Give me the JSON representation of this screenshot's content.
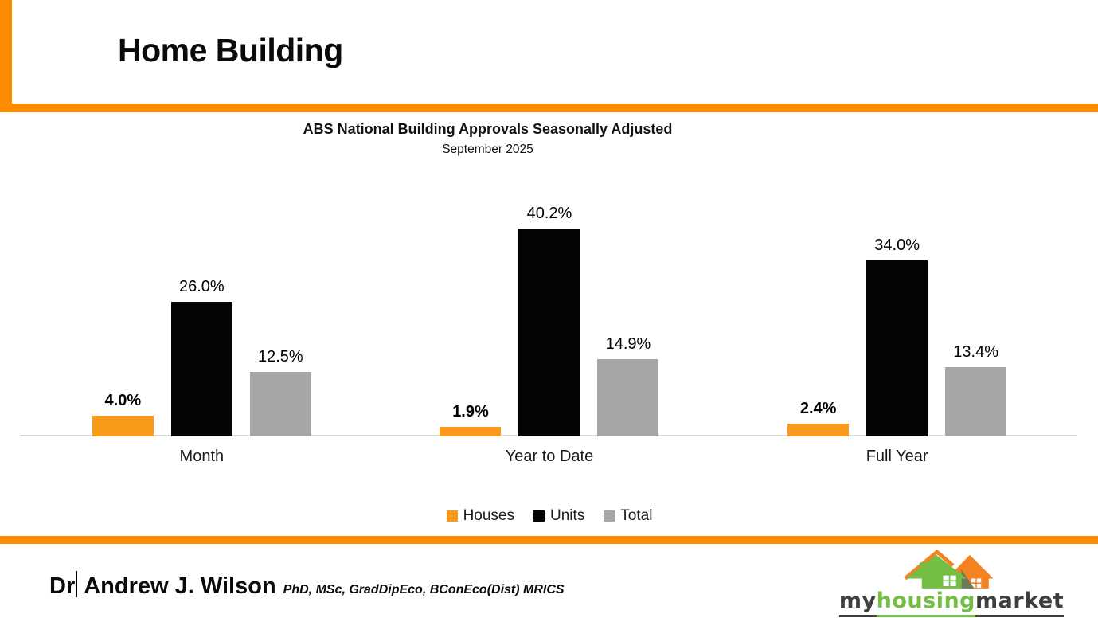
{
  "slide": {
    "title": "Home Building"
  },
  "chart": {
    "title": "ABS National Building Approvals Seasonally Adjusted",
    "subtitle": "September 2025"
  },
  "chart_data": {
    "type": "bar",
    "categories": [
      "Month",
      "Year to Date",
      "Full Year"
    ],
    "series": [
      {
        "name": "Houses",
        "color": "#FA9A1B",
        "values": [
          4.0,
          1.9,
          2.4
        ],
        "labels": [
          "4.0%",
          "1.9%",
          "2.4%"
        ],
        "label_bold": true
      },
      {
        "name": "Units",
        "color": "#050505",
        "values": [
          26.0,
          40.2,
          34.0
        ],
        "labels": [
          "26.0%",
          "40.2%",
          "34.0%"
        ],
        "label_bold": false
      },
      {
        "name": "Total",
        "color": "#A6A6A6",
        "values": [
          12.5,
          14.9,
          13.4
        ],
        "labels": [
          "12.5%",
          "14.9%",
          "13.4%"
        ],
        "label_bold": false
      }
    ],
    "ylim": [
      0,
      45
    ],
    "grid": false,
    "legend_position": "bottom",
    "value_label_format": "one-decimal-percent"
  },
  "footer": {
    "author_prefix": "Dr",
    "author_name": "Andrew J. Wilson",
    "credentials": "PhD, MSc, GradDipEco, BConEco(Dist) MRICS"
  },
  "logo": {
    "word_part1": "my",
    "word_part2": "housing",
    "word_part3": "market",
    "green": "#74BE43",
    "orange": "#F58220",
    "dark": "#3F3F3F"
  },
  "colors": {
    "accent_orange": "#FE8C00",
    "axis_line": "#D9D9D9",
    "background": "#FFFFFF"
  }
}
